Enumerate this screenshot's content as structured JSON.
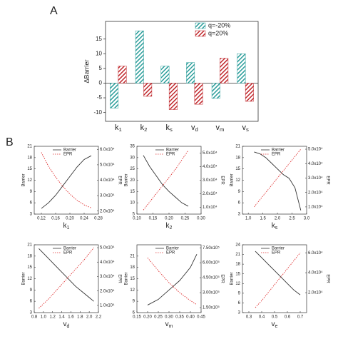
{
  "chart_data": [
    {
      "type": "bar",
      "panel": "A",
      "ylabel": "ΔBarrier",
      "categories": [
        "k1",
        "k2",
        "ks",
        "vd",
        "vm",
        "vs"
      ],
      "series": [
        {
          "name": "q=-20%",
          "color": "#2a9d9a",
          "values": [
            -8.5,
            17.8,
            5.8,
            7,
            -5.2,
            10
          ]
        },
        {
          "name": "q=20%",
          "color": "#c0282d",
          "values": [
            5.8,
            -4.5,
            -9,
            -7.2,
            8.5,
            -6.2
          ]
        }
      ],
      "ylim": [
        -13,
        21
      ],
      "yticks": [
        -10,
        -5,
        0,
        5,
        10,
        15
      ],
      "legend": "upper-right",
      "hatch": true
    },
    {
      "type": "line",
      "panel": "B",
      "xlabel": "k1",
      "ylabel": "Barrier",
      "y2label": "EPR",
      "x": [
        0.12,
        0.14,
        0.16,
        0.18,
        0.2,
        0.22,
        0.24,
        0.26
      ],
      "xlim": [
        0.1,
        0.28
      ],
      "xticks": [
        0.12,
        0.16,
        {
          "value": 0.2,
          "label": "0.20"
        },
        0.24,
        0.28
      ],
      "ylim": [
        3,
        21
      ],
      "yticks": [
        3,
        6,
        9,
        12,
        15,
        18,
        21
      ],
      "y2lim": [
        18000,
        62000
      ],
      "y2ticks": [
        {
          "value": 20000,
          "label": "2.0x10⁴"
        },
        {
          "value": 30000,
          "label": "3.0x10⁴"
        },
        {
          "value": 40000,
          "label": "4.0x10⁴"
        },
        {
          "value": 50000,
          "label": "5.0x10⁴"
        },
        {
          "value": 60000,
          "label": "6.0x10⁴"
        }
      ],
      "series": [
        {
          "name": "Barrier",
          "color": "#333333",
          "linestyle": "solid",
          "values": [
            4.5,
            6,
            8,
            10.5,
            13,
            15.5,
            17.5,
            18.5
          ]
        },
        {
          "name": "EPR",
          "color": "#e03030",
          "linestyle": "dotted",
          "axis": "y2",
          "values": [
            58000,
            49000,
            42000,
            36000,
            31000,
            27000,
            24000,
            22000
          ]
        }
      ]
    },
    {
      "type": "line",
      "xlabel": "k2",
      "ylabel": "Barrier",
      "y2label": "EPR",
      "x": [
        0.12,
        0.14,
        0.16,
        0.18,
        0.2,
        0.22,
        0.24,
        0.26
      ],
      "xlim": [
        0.1,
        0.3
      ],
      "xticks": [
        {
          "value": 0.1,
          "label": "0.10"
        },
        0.15,
        {
          "value": 0.2,
          "label": "0.20"
        },
        0.25,
        {
          "value": 0.3,
          "label": "0.30"
        }
      ],
      "ylim": [
        5,
        35
      ],
      "yticks": [
        5,
        10,
        15,
        20,
        25,
        30,
        35
      ],
      "y2lim": [
        5000,
        55000
      ],
      "y2ticks": [
        {
          "value": 10000,
          "label": "1.0x10⁴"
        },
        {
          "value": 20000,
          "label": "2.0x10⁴"
        },
        {
          "value": 30000,
          "label": "3.0x10⁴"
        },
        {
          "value": 40000,
          "label": "4.0x10⁴"
        },
        {
          "value": 50000,
          "label": "5.0x10⁴"
        }
      ],
      "series": [
        {
          "name": "Barrier",
          "color": "#333333",
          "linestyle": "solid",
          "values": [
            31,
            26,
            22,
            18,
            15,
            12.5,
            10,
            8.5
          ]
        },
        {
          "name": "EPR",
          "color": "#e03030",
          "linestyle": "dotted",
          "axis": "y2",
          "values": [
            8000,
            14000,
            20000,
            26000,
            32000,
            38000,
            45000,
            52000
          ]
        }
      ]
    },
    {
      "type": "line",
      "xlabel": "ks",
      "ylabel": "Barrier",
      "y2label": "EPR",
      "x": [
        1.2,
        1.4,
        1.6,
        1.8,
        2.0,
        2.2,
        2.4,
        2.6,
        2.8
      ],
      "xlim": [
        0.8,
        3.0
      ],
      "xticks": [
        {
          "value": 1,
          "label": "1.0"
        },
        1.5,
        {
          "value": 2,
          "label": "2.0"
        },
        2.5,
        {
          "value": 3,
          "label": "3.0"
        }
      ],
      "ylim": [
        3,
        21
      ],
      "yticks": [
        3,
        6,
        9,
        12,
        15,
        18,
        21
      ],
      "y2lim": [
        5000,
        52000
      ],
      "y2ticks": [
        {
          "value": 10000,
          "label": "1.0x10⁴"
        },
        {
          "value": 20000,
          "label": "2.0x10⁴"
        },
        {
          "value": 30000,
          "label": "3.0x10⁴"
        },
        {
          "value": 40000,
          "label": "4.0x10⁴"
        },
        {
          "value": 50000,
          "label": "5.0x10⁴"
        }
      ],
      "series": [
        {
          "name": "Barrier",
          "color": "#333333",
          "linestyle": "solid",
          "values": [
            19.5,
            19,
            18,
            16.5,
            15,
            13.5,
            12.5,
            10,
            4
          ]
        },
        {
          "name": "EPR",
          "color": "#e03030",
          "linestyle": "dotted",
          "axis": "y2",
          "values": [
            10000,
            15000,
            20000,
            25000,
            30000,
            35000,
            40000,
            45000,
            50000
          ]
        }
      ]
    },
    {
      "type": "line",
      "xlabel": "vd",
      "ylabel": "Barrier",
      "y2label": "EPR",
      "x": [
        0.9,
        1.1,
        1.3,
        1.5,
        1.7,
        1.9,
        2.1
      ],
      "xlim": [
        0.8,
        2.2
      ],
      "xticks": [
        0.8,
        {
          "value": 1,
          "label": "1.0"
        },
        1.2,
        1.4,
        1.6,
        1.8,
        {
          "value": 2,
          "label": "2.0"
        },
        2.2
      ],
      "ylim": [
        3,
        21
      ],
      "yticks": [
        3,
        6,
        9,
        12,
        15,
        18,
        21
      ],
      "y2lim": [
        5000,
        52000
      ],
      "y2ticks": [
        {
          "value": 10000,
          "label": "1.0x10⁴"
        },
        {
          "value": 20000,
          "label": "2.0x10⁴"
        },
        {
          "value": 30000,
          "label": "3.0x10⁴"
        },
        {
          "value": 40000,
          "label": "4.0x10⁴"
        },
        {
          "value": 50000,
          "label": "5.0x10⁴"
        }
      ],
      "series": [
        {
          "name": "Barrier",
          "color": "#333333",
          "linestyle": "solid",
          "values": [
            20,
            17.5,
            15,
            12.5,
            10,
            8,
            6
          ]
        },
        {
          "name": "EPR",
          "color": "#e03030",
          "linestyle": "dotted",
          "axis": "y2",
          "values": [
            8000,
            14000,
            21000,
            28000,
            35000,
            42000,
            50000
          ]
        }
      ]
    },
    {
      "type": "line",
      "xlabel": "vm",
      "ylabel": "Barrier",
      "y2label": "EPR",
      "x": [
        0.2,
        0.25,
        0.3,
        0.35,
        0.4,
        0.43
      ],
      "xlim": [
        0.15,
        0.45
      ],
      "xticks": [
        0.15,
        {
          "value": 0.2,
          "label": "0.20"
        },
        0.25,
        {
          "value": 0.3,
          "label": "0.30"
        },
        0.35,
        {
          "value": 0.4,
          "label": "0.40"
        },
        0.45
      ],
      "ylim": [
        6,
        24
      ],
      "yticks": [
        6,
        9,
        12,
        15,
        18,
        21
      ],
      "y2lim": [
        100000,
        780000
      ],
      "y2ticks": [
        {
          "value": 150000,
          "label": "1.50x10⁵"
        },
        {
          "value": 300000,
          "label": "3.00x10⁵"
        },
        {
          "value": 450000,
          "label": "4.50x10⁵"
        },
        {
          "value": 600000,
          "label": "6.00x10⁵"
        },
        {
          "value": 750000,
          "label": "7.50x10⁵"
        }
      ],
      "series": [
        {
          "name": "Barrier",
          "color": "#333333",
          "linestyle": "solid",
          "values": [
            8,
            9.5,
            12,
            14.5,
            18,
            21.5
          ]
        },
        {
          "name": "EPR",
          "color": "#e03030",
          "linestyle": "dotted",
          "axis": "y2",
          "values": [
            650000,
            520000,
            400000,
            300000,
            220000,
            180000
          ]
        }
      ]
    },
    {
      "type": "line",
      "xlabel": "ve",
      "ylabel": "Barrier",
      "y2label": "EPR",
      "x": [
        0.35,
        0.4,
        0.45,
        0.5,
        0.55,
        0.6,
        0.65,
        0.7
      ],
      "xlim": [
        0.25,
        0.75
      ],
      "xticks": [
        0.3,
        0.4,
        0.5,
        0.6,
        0.7
      ],
      "ylim": [
        3,
        24
      ],
      "yticks": [
        3,
        6,
        9,
        12,
        15,
        18,
        21,
        24
      ],
      "y2lim": [
        0,
        68000
      ],
      "y2ticks": [
        {
          "value": 20000,
          "label": "2.0x10⁴"
        },
        {
          "value": 40000,
          "label": "4.0x10⁴"
        },
        {
          "value": 60000,
          "label": "6.0x10⁴"
        }
      ],
      "series": [
        {
          "name": "Barrier",
          "color": "#333333",
          "linestyle": "solid",
          "values": [
            22,
            20,
            18,
            16,
            14,
            12,
            10,
            8.5
          ]
        },
        {
          "name": "EPR",
          "color": "#e03030",
          "linestyle": "dotted",
          "axis": "y2",
          "values": [
            5000,
            12000,
            20000,
            28000,
            36000,
            44000,
            52000,
            60000
          ]
        }
      ]
    }
  ]
}
